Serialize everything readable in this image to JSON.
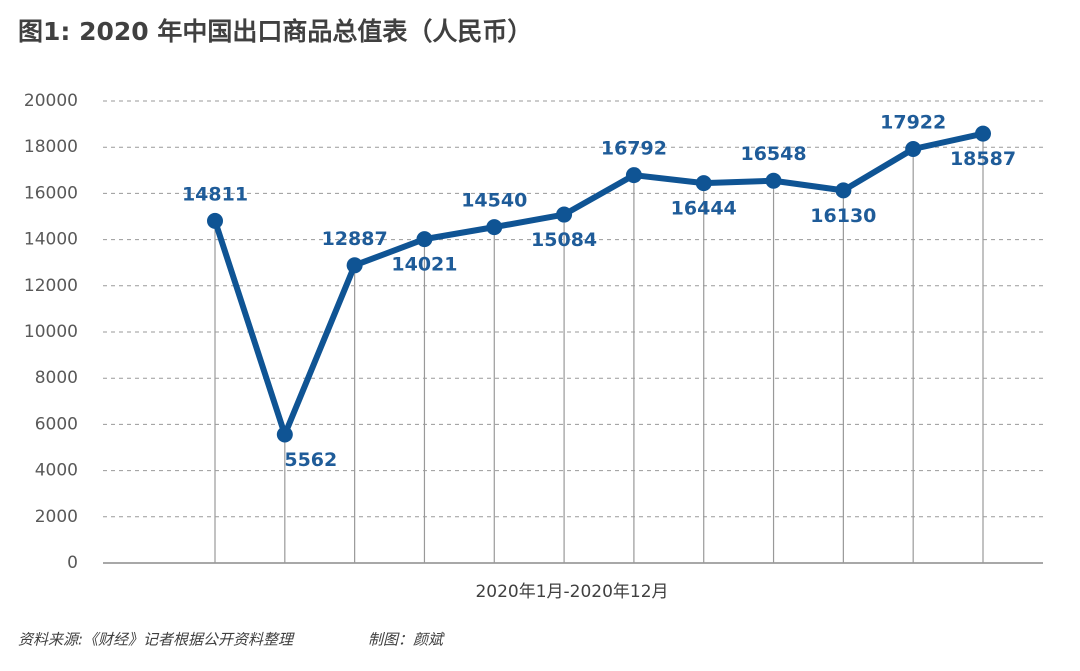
{
  "chart_data": {
    "type": "line",
    "title": "图1: 2020 年中国出口商品总值表（人民币）",
    "x_label": "2020年1月-2020年12月",
    "source": "资料来源:《财经》记者根据公开资料整理",
    "credit": "制图：颜斌",
    "categories": [
      null,
      null,
      null,
      null,
      null,
      null,
      null,
      null,
      null,
      null,
      null,
      null
    ],
    "series": [
      {
        "color": "#0f5494",
        "values": [
          14811,
          5562,
          12887,
          14021,
          14540,
          15084,
          16792,
          16444,
          16548,
          16130,
          17922,
          18587
        ]
      }
    ],
    "ylim": [
      0,
      20000
    ],
    "yticks": [
      0,
      2000,
      4000,
      6000,
      8000,
      10000,
      12000,
      14000,
      16000,
      18000,
      20000
    ],
    "grid": true
  }
}
